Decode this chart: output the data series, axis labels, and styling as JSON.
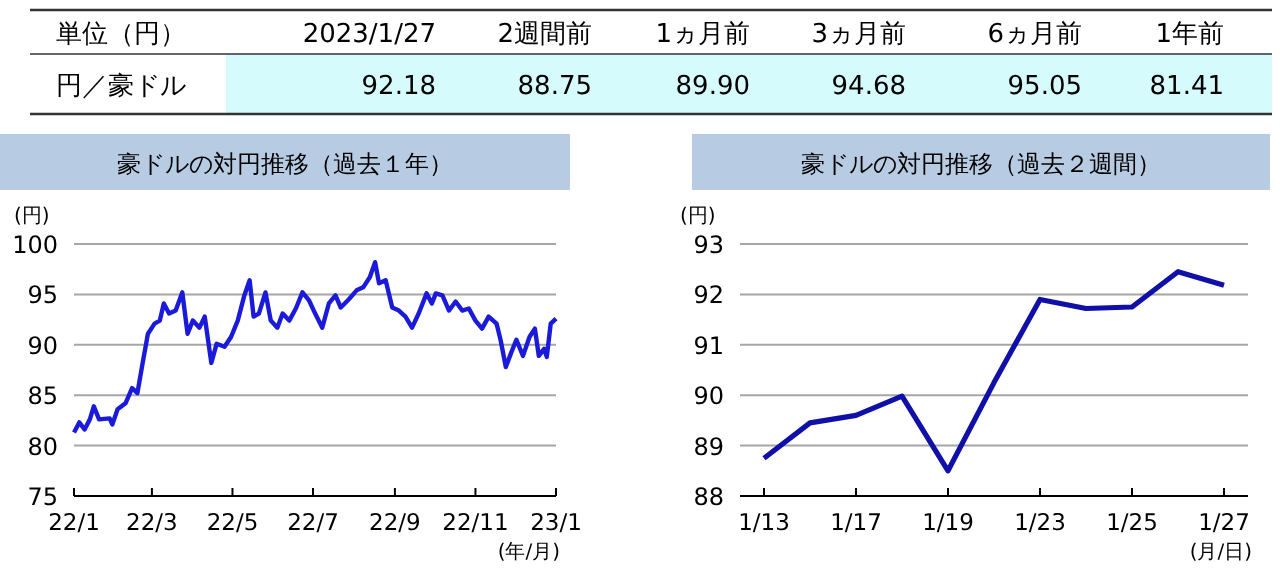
{
  "chart_data": [
    {
      "type": "other",
      "title": "単位（円）",
      "ylabel": "円／豪ドル",
      "categories": [
        "2023/1/27",
        "2週間前",
        "1ヵ月前",
        "3ヵ月前",
        "6ヵ月前",
        "1年前"
      ],
      "values": [
        92.18,
        88.75,
        89.9,
        94.68,
        95.05,
        81.41
      ],
      "value_labels": [
        "92.18",
        "88.75",
        "89.90",
        "94.68",
        "95.05",
        "81.41"
      ]
    },
    {
      "type": "line",
      "title": "豪ドルの対円推移（過去１年）",
      "ylabel": "(円)",
      "xlabel": "(年/月)",
      "xlim": [
        "2022-01-01",
        "2023-01-01"
      ],
      "xticks": [
        {
          "value": "2022-01-01",
          "label": "22/1"
        },
        {
          "value": "2022-03-01",
          "label": "22/3"
        },
        {
          "value": "2022-05-01",
          "label": "22/5"
        },
        {
          "value": "2022-07-01",
          "label": "22/7"
        },
        {
          "value": "2022-09-01",
          "label": "22/9"
        },
        {
          "value": "2022-11-01",
          "label": "22/11"
        },
        {
          "value": "2023-01-01",
          "label": "23/1"
        }
      ],
      "ylim": [
        75,
        100
      ],
      "yticks": [
        75,
        80,
        85,
        90,
        95,
        100
      ],
      "grid": "y",
      "series": [
        {
          "color": "#1a1ad8",
          "x": [
            "2022-01-01",
            "2022-01-05",
            "2022-01-09",
            "2022-01-13",
            "2022-01-16",
            "2022-01-20",
            "2022-01-28",
            "2022-01-30",
            "2022-02-03",
            "2022-02-09",
            "2022-02-14",
            "2022-02-18",
            "2022-02-22",
            "2022-02-26",
            "2022-03-03",
            "2022-03-07",
            "2022-03-10",
            "2022-03-14",
            "2022-03-19",
            "2022-03-24",
            "2022-03-28",
            "2022-04-01",
            "2022-04-06",
            "2022-04-10",
            "2022-04-15",
            "2022-04-19",
            "2022-04-25",
            "2022-04-30",
            "2022-05-05",
            "2022-05-10",
            "2022-05-14",
            "2022-05-17",
            "2022-05-21",
            "2022-05-26",
            "2022-05-30",
            "2022-06-04",
            "2022-06-08",
            "2022-06-13",
            "2022-06-18",
            "2022-06-23",
            "2022-06-28",
            "2022-07-03",
            "2022-07-08",
            "2022-07-13",
            "2022-07-18",
            "2022-07-22",
            "2022-07-28",
            "2022-08-03",
            "2022-08-08",
            "2022-08-13",
            "2022-08-17",
            "2022-08-20",
            "2022-08-25",
            "2022-08-30",
            "2022-09-04",
            "2022-09-09",
            "2022-09-14",
            "2022-09-19",
            "2022-09-25",
            "2022-09-29",
            "2022-10-02",
            "2022-10-07",
            "2022-10-12",
            "2022-10-17",
            "2022-10-22",
            "2022-10-27",
            "2022-11-01",
            "2022-11-06",
            "2022-11-11",
            "2022-11-17",
            "2022-11-20",
            "2022-11-24",
            "2022-11-28",
            "2022-12-02",
            "2022-12-07",
            "2022-12-12",
            "2022-12-16",
            "2022-12-19",
            "2022-12-23",
            "2022-12-25",
            "2022-12-28",
            "2023-01-01"
          ],
          "values": [
            81.3,
            82.3,
            81.6,
            82.6,
            83.9,
            82.6,
            82.7,
            82.1,
            83.6,
            84.2,
            85.7,
            85.2,
            88.2,
            91.1,
            92.1,
            92.4,
            94.1,
            93.1,
            93.4,
            95.2,
            91.1,
            92.4,
            91.7,
            92.8,
            88.2,
            90.1,
            89.8,
            90.8,
            92.4,
            94.9,
            96.4,
            92.8,
            93.1,
            95.2,
            92.4,
            91.7,
            93.1,
            92.4,
            93.6,
            95.2,
            94.4,
            93.0,
            91.7,
            94.1,
            94.9,
            93.7,
            94.5,
            95.4,
            95.7,
            96.7,
            98.2,
            96.1,
            96.4,
            93.7,
            93.4,
            92.8,
            91.7,
            93.1,
            95.1,
            94.1,
            95.1,
            94.9,
            93.4,
            94.3,
            93.4,
            93.6,
            92.4,
            91.6,
            92.8,
            92.1,
            90.5,
            87.8,
            89.2,
            90.5,
            88.9,
            90.8,
            91.6,
            88.9,
            89.6,
            88.8,
            92.1,
            92.6
          ]
        }
      ]
    },
    {
      "type": "line",
      "title": "豪ドルの対円推移（過去２週間）",
      "ylabel": "(円)",
      "xlabel": "(月/日)",
      "categories": [
        "1/13",
        null,
        "1/17",
        null,
        "1/19",
        null,
        "1/23",
        null,
        "1/25",
        null,
        "1/27"
      ],
      "ylim": [
        88,
        93
      ],
      "yticks": [
        88,
        89,
        90,
        91,
        92,
        93
      ],
      "grid": "y",
      "series": [
        {
          "color": "#1010a8",
          "values": [
            88.75,
            89.45,
            89.6,
            89.98,
            88.5,
            90.25,
            91.9,
            91.72,
            91.75,
            92.45,
            92.18
          ]
        }
      ]
    }
  ]
}
